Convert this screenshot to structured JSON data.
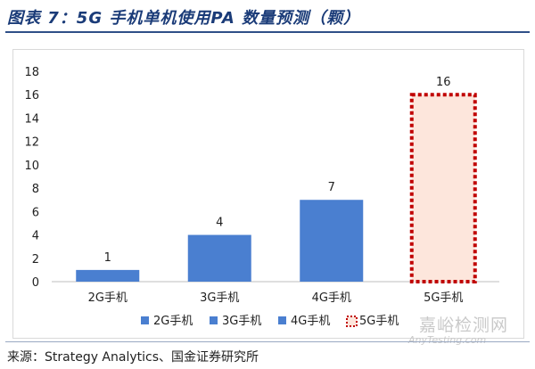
{
  "title": "图表 7：5G 手机单机使用PA 数量预测（颗）",
  "source": "来源：Strategy Analytics、国金证券研究所",
  "watermark": {
    "main": "嘉峪检测网",
    "sub": "AnyTesting.com"
  },
  "colors": {
    "bar": "#4a7fd0",
    "highlight_fill": "#fde6dc",
    "highlight_border": "#c00000",
    "title": "#1a3b78"
  },
  "chart_data": {
    "type": "bar",
    "categories": [
      "2G手机",
      "3G手机",
      "4G手机",
      "5G手机"
    ],
    "values": [
      1,
      4,
      7,
      16
    ],
    "ylim": [
      0,
      18
    ],
    "yticks": [
      0,
      2,
      4,
      6,
      8,
      10,
      12,
      14,
      16,
      18
    ],
    "legend": [
      "2G手机",
      "3G手机",
      "4G手机",
      "5G手机"
    ],
    "legend_position": "bottom",
    "highlight_category": "5G手机",
    "grid": false
  }
}
